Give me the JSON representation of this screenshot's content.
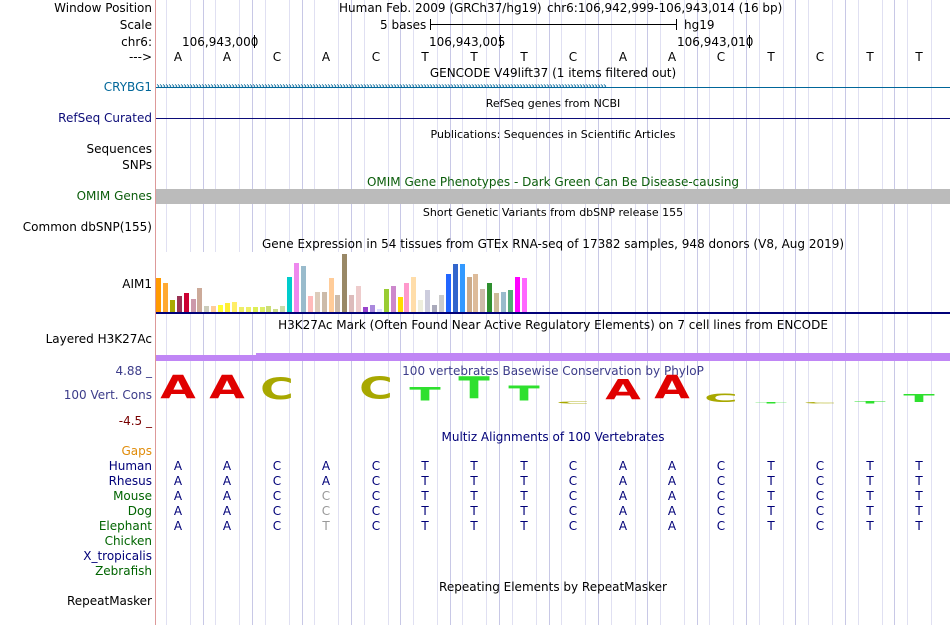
{
  "header": {
    "assembly": "Human Feb. 2009 (GRCh37/hg19)",
    "position": "chr6:106,942,999-106,943,014 (16 bp)",
    "scale_text": "5 bases",
    "scale_db": "hg19",
    "coords": [
      "106,943,000",
      "106,943,005",
      "106,943,010"
    ],
    "strand_arrow": "--->"
  },
  "labels": {
    "window_position": "Window Position",
    "scale": "Scale",
    "chrom": "chr6:",
    "strand": "--->",
    "gene": "CRYBG1",
    "refseq": "RefSeq Curated",
    "sequences": "Sequences",
    "snps": "SNPs",
    "omim": "OMIM Genes",
    "common_dbsnp": "Common dbSNP(155)",
    "aim1": "AIM1",
    "h3k27ac": "Layered H3K27Ac",
    "cons_max": "4.88 _",
    "cons": "100 Vert. Cons",
    "cons_min": "-4.5 _",
    "gaps": "Gaps",
    "repeatmasker": "RepeatMasker"
  },
  "species": [
    "Human",
    "Rhesus",
    "Mouse",
    "Dog",
    "Elephant",
    "Chicken",
    "X_tropicalis",
    "Zebrafish"
  ],
  "track_titles": {
    "gencode": "GENCODE V49lift37 (1 items filtered out)",
    "refseq": "RefSeq genes from NCBI",
    "publications": "Publications: Sequences in Scientific Articles",
    "omim": "OMIM Gene Phenotypes - Dark Green Can Be Disease-causing",
    "dbsnp": "Short Genetic Variants from dbSNP release 155",
    "gtex": "Gene Expression in 54 tissues from GTEx RNA-seq of 17382 samples, 948 donors (V8, Aug 2019)",
    "h3k27ac": "H3K27Ac Mark (Often Found Near Active Regulatory Elements) on 7 cell lines from ENCODE",
    "phylop": "100 vertebrates Basewise Conservation by PhyloP",
    "multiz": "Multiz Alignments of 100 Vertebrates",
    "repeatmasker": "Repeating Elements by RepeatMasker"
  },
  "sequence": [
    "A",
    "A",
    "C",
    "A",
    "C",
    "T",
    "T",
    "T",
    "C",
    "A",
    "A",
    "C",
    "T",
    "C",
    "T",
    "T"
  ],
  "alignment": {
    "Human": [
      "A",
      "A",
      "C",
      "A",
      "C",
      "T",
      "T",
      "T",
      "C",
      "A",
      "A",
      "C",
      "T",
      "C",
      "T",
      "T"
    ],
    "Rhesus": [
      "A",
      "A",
      "C",
      "A",
      "C",
      "T",
      "T",
      "T",
      "C",
      "A",
      "A",
      "C",
      "T",
      "C",
      "T",
      "T"
    ],
    "Mouse": [
      "A",
      "A",
      "C",
      "C",
      "C",
      "T",
      "T",
      "T",
      "C",
      "A",
      "A",
      "C",
      "T",
      "C",
      "T",
      "T"
    ],
    "Dog": [
      "A",
      "A",
      "C",
      "C",
      "C",
      "T",
      "T",
      "T",
      "C",
      "A",
      "A",
      "C",
      "T",
      "C",
      "T",
      "T"
    ],
    "Elephant": [
      "A",
      "A",
      "C",
      "T",
      "C",
      "T",
      "T",
      "T",
      "C",
      "A",
      "A",
      "C",
      "T",
      "C",
      "T",
      "T"
    ]
  },
  "alignment_mismatch": {
    "Mouse": [
      3
    ],
    "Dog": [
      3
    ],
    "Elephant": [
      3
    ]
  },
  "conservation": [
    0.95,
    0.95,
    0.85,
    0.0,
    0.9,
    0.55,
    0.9,
    0.6,
    0.08,
    0.8,
    0.95,
    0.35,
    0.06,
    0.04,
    0.1,
    0.3
  ],
  "gtex_values": [
    0.58,
    0.5,
    0.2,
    0.28,
    0.32,
    0.22,
    0.42,
    0.1,
    0.1,
    0.12,
    0.15,
    0.17,
    0.08,
    0.08,
    0.08,
    0.08,
    0.1,
    0.06,
    0.1,
    0.6,
    0.85,
    0.8,
    0.28,
    0.35,
    0.35,
    0.58,
    0.3,
    1.0,
    0.3,
    0.45,
    0.08,
    0.12,
    0.05,
    0.4,
    0.45,
    0.25,
    0.5,
    0.6,
    0.2,
    0.38,
    0.12,
    0.3,
    0.65,
    0.82,
    0.82,
    0.6,
    0.65,
    0.4,
    0.5,
    0.32,
    0.35,
    0.38,
    0.6,
    0.58
  ],
  "gtex_colors": [
    "#ff9900",
    "#ffaa33",
    "#aaaa00",
    "#993355",
    "#cc0033",
    "#cc99aa",
    "#ccaa99",
    "#ccccbb",
    "#ffcc99",
    "#ffff33",
    "#ffee33",
    "#ffee66",
    "#eeee66",
    "#eeee66",
    "#ddee55",
    "#ddee66",
    "#ccdd77",
    "#ccdd88",
    "#ccddaa",
    "#00cccc",
    "#ee88ee",
    "#99bbcc",
    "#ffbbbb",
    "#ddccbb",
    "#ccbbaa",
    "#ffcc99",
    "#ccbbaa",
    "#998866",
    "#ddbbbb",
    "#eecccc",
    "#9944cc",
    "#aa88dd",
    "#ddddff",
    "#99cc33",
    "#cc88cc",
    "#ffdd00",
    "#ff99cc",
    "#ffddaa",
    "#eeeedd",
    "#ccccdd",
    "#aaaabb",
    "#cccccc",
    "#2266ff",
    "#3366cc",
    "#3399ff",
    "#ccaa88",
    "#ddbb99",
    "#ccbbaa",
    "#2f8f2f",
    "#ccbb99",
    "#99bbcc",
    "#55aa77",
    "#ff00ff",
    "#ff66ff"
  ],
  "colors": {
    "gene": "#006699",
    "refseq": "#0c0c78",
    "omim_label": "#0b5d0b",
    "omim_bar": "#bbbbbb",
    "h3k27ac_bar": "#c086f5",
    "phylop": "#3c3c8a",
    "cons_min": "#780000",
    "gaps": "#e08c0a",
    "species": "#000078",
    "species_green": "#006400",
    "base_A": "#e00000",
    "base_C": "#a8a800",
    "base_T": "#2ee02e",
    "mismatch": "#999999"
  }
}
